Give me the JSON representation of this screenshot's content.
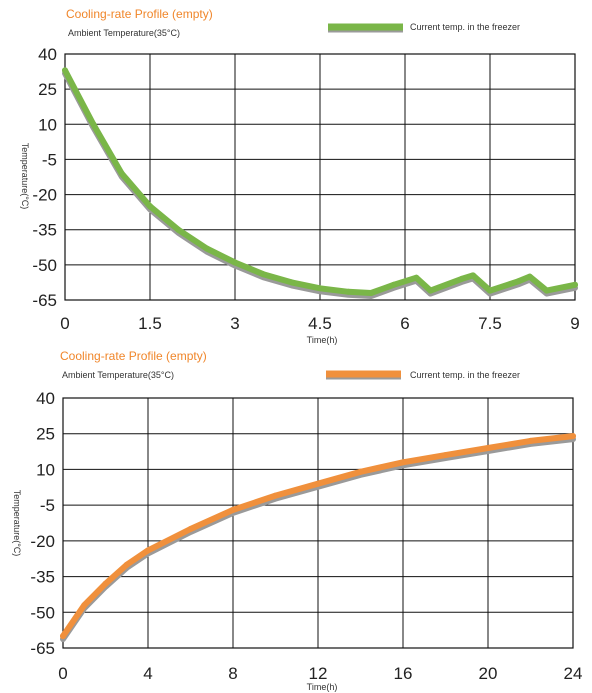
{
  "chart_data": [
    {
      "type": "line",
      "title": "Cooling-rate Profile (empty)",
      "subtitle": "Ambient Temperature(35°C)",
      "xlabel": "Time(h)",
      "ylabel": "Temperature(°C)",
      "xlim": [
        0,
        9
      ],
      "ylim": [
        -65,
        40
      ],
      "x_ticks": [
        "0",
        "1.5",
        "3",
        "4.5",
        "6",
        "7.5",
        "9"
      ],
      "x_tick_values": [
        0,
        1.5,
        3,
        4.5,
        6,
        7.5,
        9
      ],
      "y_ticks": [
        "40",
        "25",
        "10",
        "-5",
        "-20",
        "-35",
        "-50",
        "-65"
      ],
      "y_tick_values": [
        40,
        25,
        10,
        -5,
        -20,
        -35,
        -50,
        -65
      ],
      "grid": true,
      "legend_position": "top-right",
      "series": [
        {
          "name": "Current temp. in the freezer",
          "color": "#7ab648",
          "x": [
            0,
            0.5,
            1.0,
            1.5,
            2.0,
            2.5,
            3.0,
            3.5,
            4.0,
            4.5,
            5.0,
            5.4,
            5.8,
            6.2,
            6.45,
            7.0,
            7.2,
            7.5,
            8.0,
            8.2,
            8.5,
            9.0
          ],
          "y": [
            33,
            10,
            -11,
            -25,
            -35,
            -43,
            -49,
            -54,
            -57.5,
            -60,
            -61.5,
            -62,
            -58.5,
            -55.5,
            -61,
            -56,
            -54.5,
            -61,
            -57,
            -55,
            -61,
            -58.5
          ]
        }
      ]
    },
    {
      "type": "line",
      "title": "Cooling-rate Profile (empty)",
      "subtitle": "Ambient Temperature(35°C)",
      "xlabel": "Time(h)",
      "ylabel": "Temperature(°C)",
      "xlim": [
        0,
        24
      ],
      "ylim": [
        -65,
        40
      ],
      "x_ticks": [
        "0",
        "4",
        "8",
        "12",
        "16",
        "20",
        "24"
      ],
      "x_tick_values": [
        0,
        4,
        8,
        12,
        16,
        20,
        24
      ],
      "y_ticks": [
        "40",
        "25",
        "10",
        "-5",
        "-20",
        "-35",
        "-50",
        "-65"
      ],
      "y_tick_values": [
        40,
        25,
        10,
        -5,
        -20,
        -35,
        -50,
        -65
      ],
      "grid": true,
      "legend_position": "top-right",
      "series": [
        {
          "name": "Current temp. in the freezer",
          "color": "#f0903c",
          "x": [
            0,
            1,
            2,
            3,
            4,
            6,
            8,
            10,
            12,
            14,
            16,
            18,
            20,
            22,
            24
          ],
          "y": [
            -60,
            -47,
            -38,
            -30,
            -24,
            -15,
            -7,
            -1,
            4,
            9,
            13,
            16,
            19,
            22,
            24
          ]
        }
      ]
    }
  ]
}
